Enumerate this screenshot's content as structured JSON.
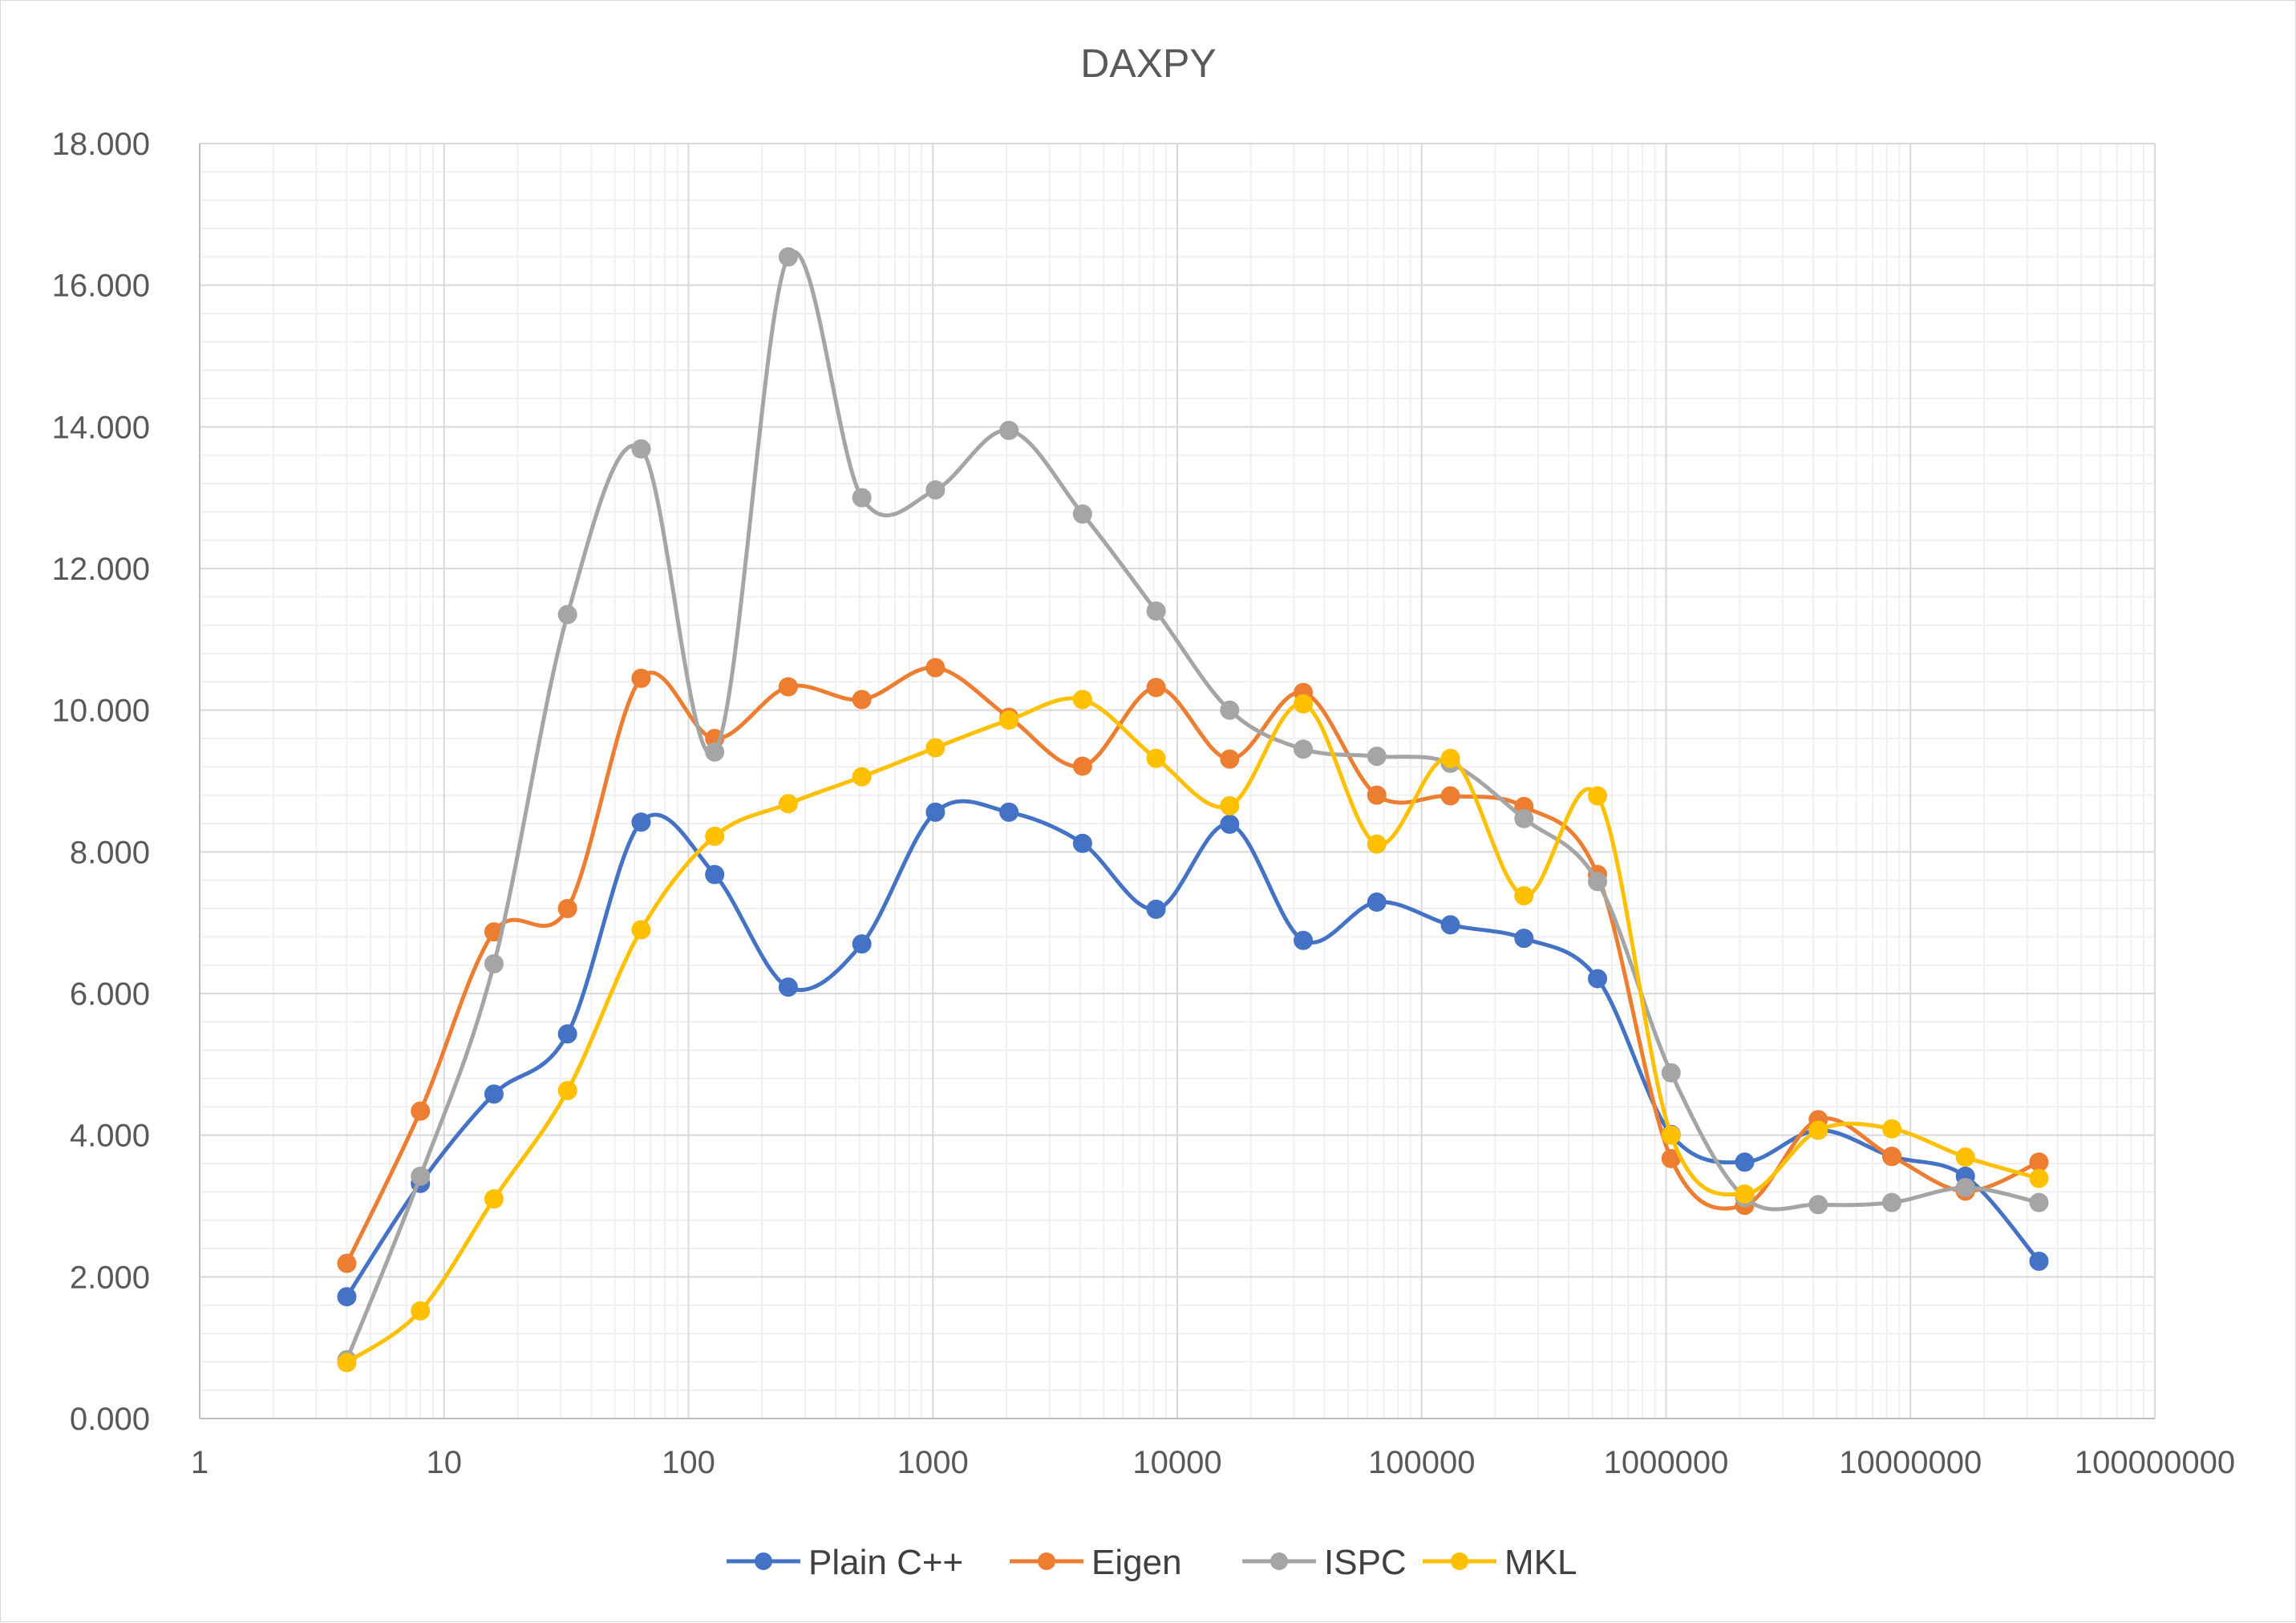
{
  "chart_data": {
    "type": "line",
    "title": "DAXPY",
    "xlabel": "",
    "ylabel": "",
    "x_scale": "log",
    "xlim": [
      1,
      100000000
    ],
    "ylim": [
      0,
      18
    ],
    "grid": true,
    "legend_position": "bottom",
    "smoothed": true,
    "x_tick_labels": [
      "1",
      "10",
      "100",
      "1000",
      "10000",
      "100000",
      "1000000",
      "10000000",
      "100000000"
    ],
    "y_tick_labels": [
      "0.000",
      "2.000",
      "4.000",
      "6.000",
      "8.000",
      "10.000",
      "12.000",
      "14.000",
      "16.000",
      "18.000"
    ],
    "x": [
      4,
      8,
      16,
      32,
      64,
      128,
      256,
      512,
      1024,
      2048,
      4096,
      8192,
      16384,
      32768,
      65536,
      131072,
      262144,
      524288,
      1048576,
      2097152,
      4194304,
      8388608,
      16777216,
      33554432
    ],
    "series": [
      {
        "name": "Plain C++",
        "color": "#4472C4",
        "values": [
          1.72,
          3.32,
          4.58,
          5.43,
          8.42,
          7.68,
          6.09,
          6.7,
          8.56,
          8.56,
          8.12,
          7.19,
          8.39,
          6.75,
          7.29,
          6.97,
          6.78,
          6.21,
          4.01,
          3.62,
          4.07,
          3.7,
          3.42,
          2.22
        ]
      },
      {
        "name": "Eigen",
        "color": "#ED7D31",
        "values": [
          2.19,
          4.34,
          6.87,
          7.2,
          10.45,
          9.6,
          10.33,
          10.15,
          10.6,
          9.9,
          9.21,
          10.32,
          9.31,
          10.25,
          8.8,
          8.79,
          8.64,
          7.68,
          3.67,
          3.01,
          4.22,
          3.7,
          3.21,
          3.62
        ]
      },
      {
        "name": "ISPC",
        "color": "#A5A5A5",
        "values": [
          0.83,
          3.42,
          6.42,
          11.35,
          13.69,
          9.41,
          16.4,
          13.0,
          13.11,
          13.95,
          12.77,
          11.4,
          10.0,
          9.45,
          9.35,
          9.25,
          8.47,
          7.58,
          4.88,
          3.12,
          3.02,
          3.05,
          3.26,
          3.05
        ]
      },
      {
        "name": "MKL",
        "color": "#FFC000",
        "values": [
          0.79,
          1.52,
          3.1,
          4.63,
          6.9,
          8.22,
          8.68,
          9.06,
          9.47,
          9.86,
          10.15,
          9.32,
          8.65,
          10.09,
          8.11,
          9.32,
          7.38,
          8.79,
          4.0,
          3.17,
          4.07,
          4.09,
          3.69,
          3.39
        ]
      }
    ]
  }
}
